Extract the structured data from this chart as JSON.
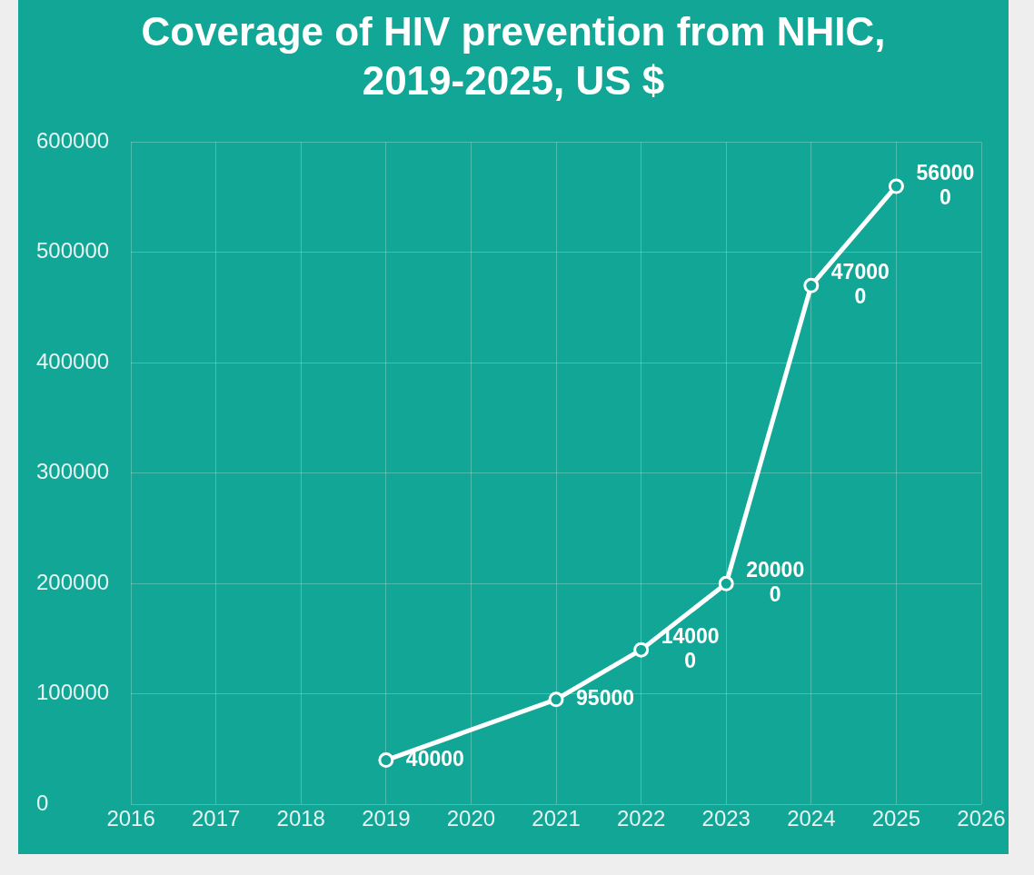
{
  "chart_data": {
    "type": "line",
    "title": "Coverage of HIV prevention from NHIC, 2019-2025, US $",
    "x": [
      2019,
      2021,
      2022,
      2023,
      2024,
      2025
    ],
    "series": [
      {
        "color": "#ffffff",
        "values": [
          40000,
          95000,
          140000,
          200000,
          470000,
          560000
        ]
      }
    ],
    "xlim": [
      2016,
      2026
    ],
    "xticks": [
      2016,
      2017,
      2018,
      2019,
      2020,
      2021,
      2022,
      2023,
      2024,
      2025,
      2026
    ],
    "ylim": [
      0,
      600000
    ],
    "yticks": [
      0,
      100000,
      200000,
      300000,
      400000,
      500000,
      600000
    ],
    "grid": true,
    "legend": false,
    "marker": "circle",
    "line_style": "solid",
    "data_labels": true
  }
}
